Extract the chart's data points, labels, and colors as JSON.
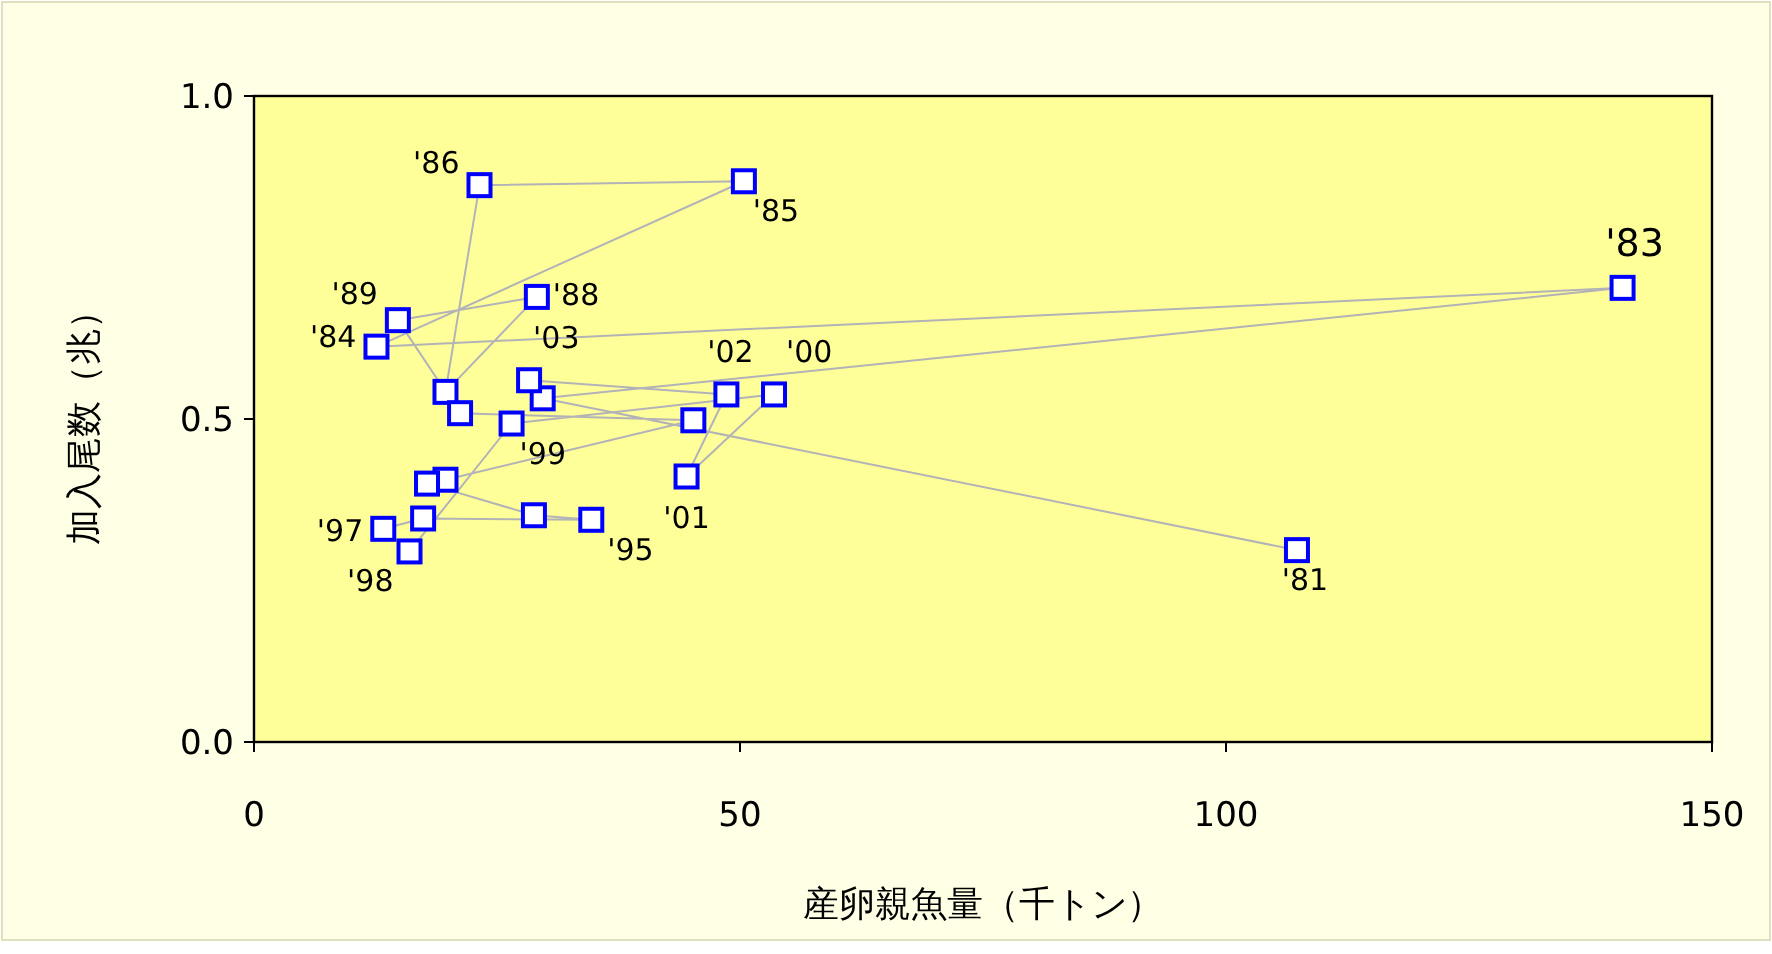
{
  "chart_data": {
    "type": "line",
    "xlabel": "産卵親魚量（千トン）",
    "ylabel": "加入尾数（兆）",
    "xlim": [
      0,
      150
    ],
    "xticks": [
      0,
      50,
      100,
      150
    ],
    "ylim": [
      0,
      1
    ],
    "yticks": [
      {
        "value": 0,
        "label": "0.0"
      },
      {
        "value": 0.5,
        "label": "0.5"
      },
      {
        "value": 1,
        "label": "1.0"
      }
    ],
    "grid": false,
    "marker": "square",
    "line_style": "solid",
    "series": [
      {
        "color": "#0000ff",
        "x": [
          107.3,
          29.7,
          140.8,
          12.6,
          50.4,
          23.2,
          19.7,
          29.1,
          14.8,
          21.2,
          45.2,
          19.7,
          17.8,
          28.8,
          34.7,
          17.4,
          13.3,
          16.0,
          26.5,
          53.5,
          44.5,
          48.6,
          28.3
        ],
        "values": [
          0.297,
          0.532,
          0.703,
          0.612,
          0.868,
          0.862,
          0.542,
          0.689,
          0.653,
          0.509,
          0.498,
          0.406,
          0.4,
          0.351,
          0.344,
          0.346,
          0.33,
          0.295,
          0.493,
          0.538,
          0.411,
          0.538,
          0.56
        ]
      }
    ],
    "annotations": [
      {
        "text": "'81",
        "x": 107.3,
        "y": 0.297
      },
      {
        "text": "'83",
        "x": 140.8,
        "y": 0.703
      },
      {
        "text": "'84",
        "x": 12.6,
        "y": 0.612
      },
      {
        "text": "'85",
        "x": 50.4,
        "y": 0.868
      },
      {
        "text": "'86",
        "x": 23.2,
        "y": 0.862
      },
      {
        "text": "'88",
        "x": 29.1,
        "y": 0.689
      },
      {
        "text": "'89",
        "x": 14.8,
        "y": 0.653
      },
      {
        "text": "'95",
        "x": 34.7,
        "y": 0.344
      },
      {
        "text": "'97",
        "x": 13.3,
        "y": 0.33
      },
      {
        "text": "'98",
        "x": 16.0,
        "y": 0.295
      },
      {
        "text": "'99",
        "x": 26.5,
        "y": 0.493
      },
      {
        "text": "'00",
        "x": 53.5,
        "y": 0.538
      },
      {
        "text": "'01",
        "x": 44.5,
        "y": 0.411
      },
      {
        "text": "'02",
        "x": 48.6,
        "y": 0.538
      },
      {
        "text": "'03",
        "x": 28.3,
        "y": 0.56
      }
    ]
  }
}
